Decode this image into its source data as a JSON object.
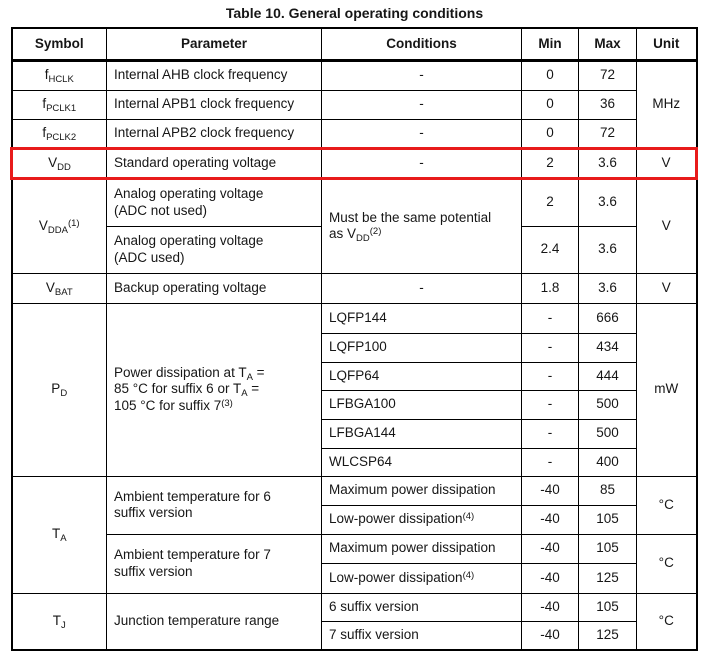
{
  "page": {
    "title": "Table 10. General operating conditions"
  },
  "table": {
    "highlight_color": "#e81b1b",
    "columns": {
      "symbol": "Symbol",
      "parameter": "Parameter",
      "conditions": "Conditions",
      "min": "Min",
      "max": "Max",
      "unit": "Unit"
    },
    "rows": {
      "hclk": {
        "symbol": "f~HCLK~",
        "parameter": "Internal AHB clock frequency",
        "conditions": "-",
        "min": "0",
        "max": "72"
      },
      "pclk1": {
        "symbol": "f~PCLK1~",
        "parameter": "Internal APB1 clock frequency",
        "conditions": "-",
        "min": "0",
        "max": "36"
      },
      "pclk2": {
        "symbol": "f~PCLK2~",
        "parameter": "Internal APB2 clock frequency",
        "conditions": "-",
        "min": "0",
        "max": "72"
      },
      "clock_unit": "MHz",
      "vdd": {
        "symbol": "V~DD~",
        "parameter": "Standard operating voltage",
        "conditions": "-",
        "min": "2",
        "max": "3.6",
        "unit": "V"
      },
      "vdda": {
        "symbol": "V~DDA~^(1)^",
        "conditions": "Must be the same potential\nas V~DD~^(2)^",
        "unit": "V",
        "adc_not_used": {
          "parameter": "Analog operating voltage\n(ADC not used)",
          "min": "2",
          "max": "3.6"
        },
        "adc_used": {
          "parameter": "Analog operating voltage\n(ADC used)",
          "min": "2.4",
          "max": "3.6"
        }
      },
      "vbat": {
        "symbol": "V~BAT~",
        "parameter": "Backup operating voltage",
        "conditions": "-",
        "min": "1.8",
        "max": "3.6",
        "unit": "V"
      },
      "pd": {
        "symbol": "P~D~",
        "parameter": "Power dissipation at T~A~ =\n85 °C for suffix 6 or T~A~ =\n105 °C for suffix 7^(3)^",
        "unit": "mW",
        "packages": [
          {
            "conditions": "LQFP144",
            "min": "-",
            "max": "666"
          },
          {
            "conditions": "LQFP100",
            "min": "-",
            "max": "434"
          },
          {
            "conditions": "LQFP64",
            "min": "-",
            "max": "444"
          },
          {
            "conditions": "LFBGA100",
            "min": "-",
            "max": "500"
          },
          {
            "conditions": "LFBGA144",
            "min": "-",
            "max": "500"
          },
          {
            "conditions": "WLCSP64",
            "min": "-",
            "max": "400"
          }
        ]
      },
      "ta": {
        "symbol": "T~A~",
        "suffix6": {
          "parameter": "Ambient temperature for 6\nsuffix version",
          "unit": "°C",
          "rows": [
            {
              "conditions": "Maximum power dissipation",
              "min": "-40",
              "max": "85"
            },
            {
              "conditions": "Low-power dissipation^(4)^",
              "min": "-40",
              "max": "105"
            }
          ]
        },
        "suffix7": {
          "parameter": "Ambient temperature for 7\nsuffix version",
          "unit": "°C",
          "rows": [
            {
              "conditions": "Maximum power dissipation",
              "min": "-40",
              "max": "105"
            },
            {
              "conditions": "Low-power dissipation^(4)^",
              "min": "-40",
              "max": "125"
            }
          ]
        }
      },
      "tj": {
        "symbol": "T~J~",
        "parameter": "Junction temperature range",
        "unit": "°C",
        "rows": [
          {
            "conditions": "6 suffix version",
            "min": "-40",
            "max": "105"
          },
          {
            "conditions": "7 suffix version",
            "min": "-40",
            "max": "125"
          }
        ]
      }
    }
  }
}
